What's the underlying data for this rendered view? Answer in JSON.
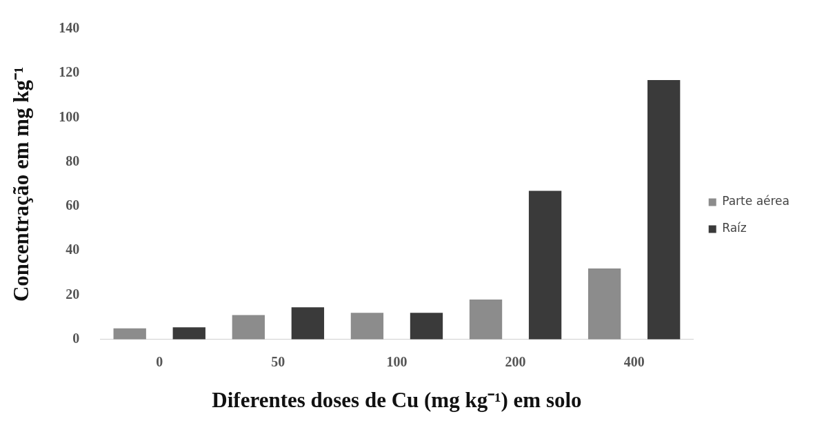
{
  "chart_data": {
    "type": "bar",
    "xlabel": "Diferentes doses de Cu (mg kg⁻¹) em solo",
    "ylabel": "Concentração em mg kg⁻¹",
    "categories": [
      "0",
      "50",
      "100",
      "200",
      "400"
    ],
    "series": [
      {
        "name": "Parte aérea",
        "color": "#8c8c8c",
        "values": [
          5,
          11,
          12,
          18,
          32
        ]
      },
      {
        "name": "Raíz",
        "color": "#3a3a3a",
        "values": [
          5.5,
          14.5,
          12,
          67,
          117
        ]
      }
    ],
    "ylim": [
      0,
      140
    ],
    "yticks": [
      0,
      20,
      40,
      60,
      80,
      100,
      120,
      140
    ],
    "grid": false,
    "legend": "right"
  }
}
